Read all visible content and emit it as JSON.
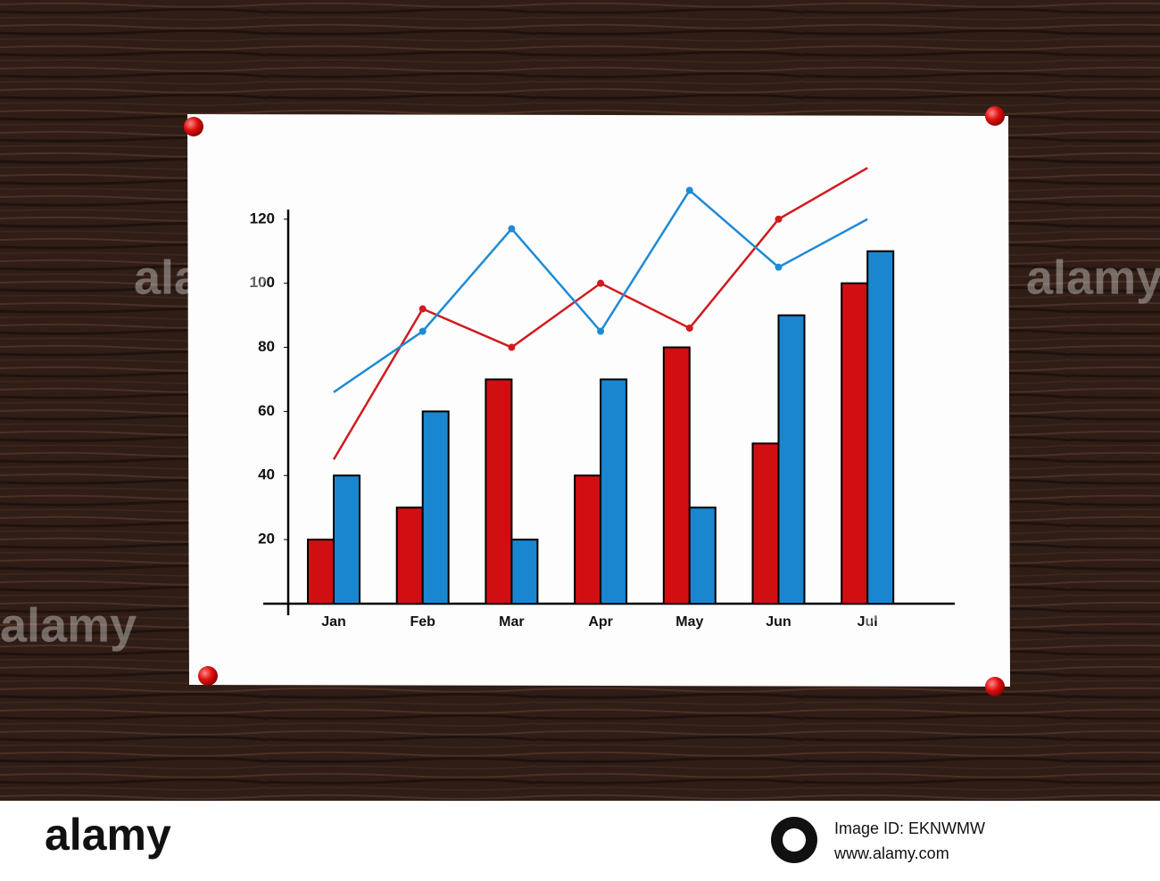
{
  "chart_data": {
    "type": "bar",
    "categories": [
      "Jan",
      "Feb",
      "Mar",
      "Apr",
      "May",
      "Jun",
      "Jul"
    ],
    "series": [
      {
        "type": "bar",
        "color": "#d10f12",
        "values": [
          20,
          30,
          70,
          40,
          80,
          50,
          100
        ]
      },
      {
        "type": "bar",
        "color": "#1a86d0",
        "values": [
          40,
          60,
          20,
          70,
          30,
          90,
          110
        ]
      },
      {
        "type": "line",
        "color": "#d11a1f",
        "values": [
          45,
          92,
          80,
          100,
          86,
          120,
          136
        ]
      },
      {
        "type": "line",
        "color": "#1e8ad6",
        "values": [
          66,
          85,
          117,
          85,
          129,
          105,
          120
        ]
      }
    ],
    "ylim": [
      0,
      123
    ],
    "yticks": [
      20,
      40,
      60,
      80,
      100,
      120
    ],
    "grid": false
  },
  "watermark": {
    "brand": "alamy",
    "image_id": "Image ID: EKNWMW",
    "url": "www.alamy.com"
  }
}
